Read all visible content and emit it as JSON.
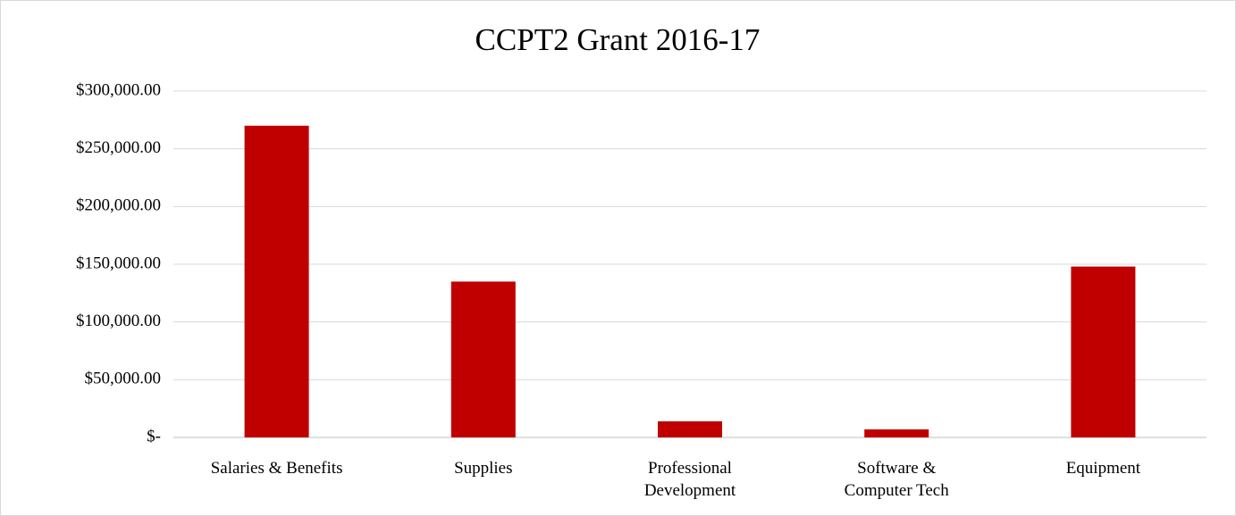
{
  "chart_data": {
    "type": "bar",
    "title": "CCPT2 Grant 2016-17",
    "categories": [
      "Salaries & Benefits",
      "Supplies",
      "Professional\nDevelopment",
      "Software &\nComputer Tech",
      "Equipment"
    ],
    "values": [
      270000,
      135000,
      14000,
      7000,
      148000
    ],
    "color": "#c00000",
    "ylim": [
      0,
      300000
    ],
    "yticks": [
      {
        "value": 0,
        "label": "$-"
      },
      {
        "value": 50000,
        "label": "$50,000.00"
      },
      {
        "value": 100000,
        "label": "$100,000.00"
      },
      {
        "value": 150000,
        "label": "$150,000.00"
      },
      {
        "value": 200000,
        "label": "$200,000.00"
      },
      {
        "value": 250000,
        "label": "$250,000.00"
      },
      {
        "value": 300000,
        "label": "$300,000.00"
      }
    ],
    "grid": true
  }
}
